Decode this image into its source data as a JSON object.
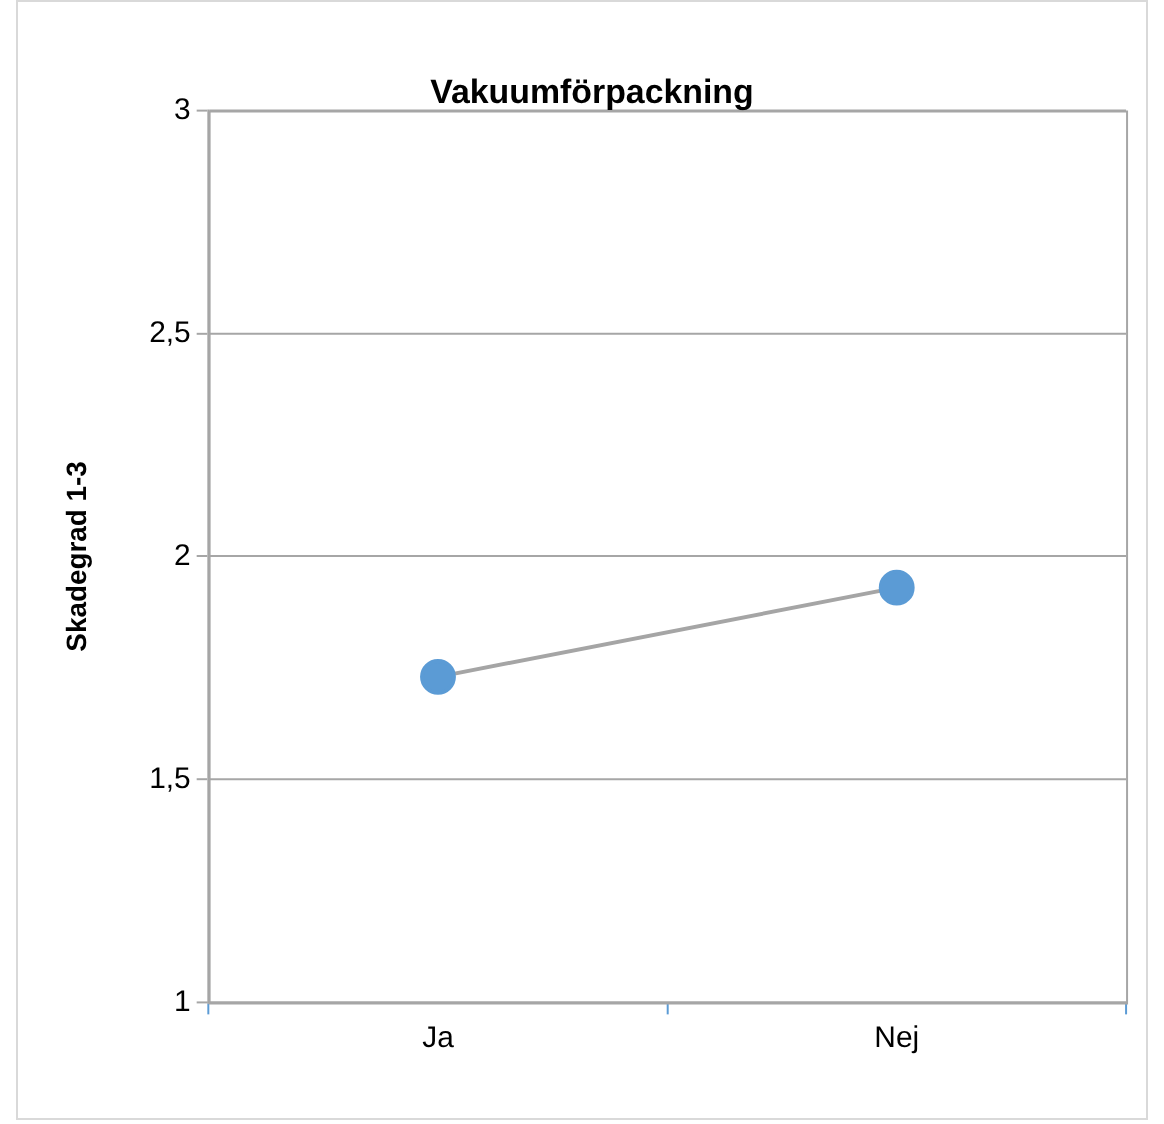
{
  "chart_data": {
    "type": "line",
    "title": "Vakuumförpackning",
    "ylabel": "Skadegrad 1-3",
    "categories": [
      "Ja",
      "Nej"
    ],
    "series": [
      {
        "color": "#5b9bd5",
        "values": [
          1.73,
          1.93
        ]
      }
    ],
    "ylim": [
      1,
      3
    ],
    "yticks": [
      1,
      {
        "value": 1.5,
        "label": "1,5"
      },
      2,
      {
        "value": 2.5,
        "label": "2,5"
      },
      3
    ],
    "grid": "y",
    "legend": false,
    "marker": "circle",
    "line_style": "solid"
  }
}
